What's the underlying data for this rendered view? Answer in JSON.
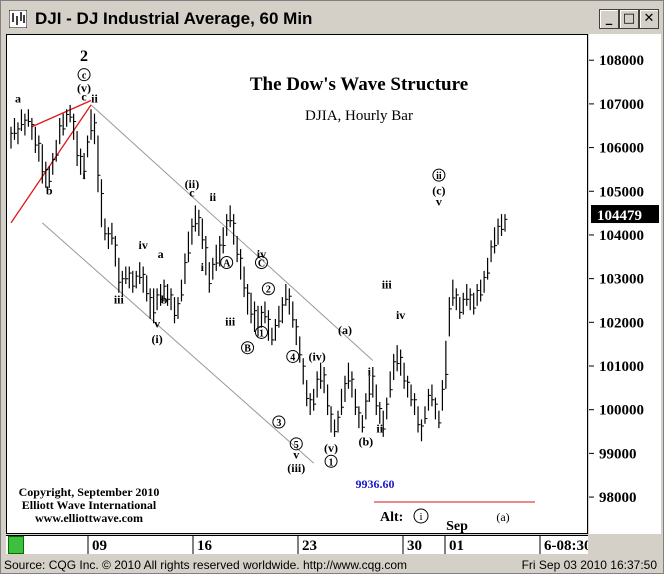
{
  "window": {
    "title": "DJI - DJ Industrial Average, 60 Min",
    "minimize": "_",
    "maximize": "□",
    "close": "✕"
  },
  "status": {
    "left": "Source: CQG Inc. © 2010 All rights reserved worldwide.  http://www.cqg.com",
    "right": "Fri Sep 03 2010 16:37:50"
  },
  "chart_data": {
    "type": "bar",
    "title": "The Dow's Wave Structure",
    "subtitle": "DJIA, Hourly Bar",
    "y_ticks": [
      98000,
      99000,
      100000,
      101000,
      102000,
      103000,
      104000,
      105000,
      106000,
      107000,
      108000
    ],
    "ylim": [
      97200,
      108600
    ],
    "x_ticks": [
      "09",
      "16",
      "23",
      "30",
      "01",
      "6-08:30"
    ],
    "x_month_label": "Sep",
    "last_price": "104479",
    "low_label": "9936.60",
    "copyright": [
      "Copyright, September 2010",
      "Elliott Wave International",
      "www.elliottwave.com"
    ],
    "alt_label": "Alt:",
    "bars": [
      [
        106500,
        106000
      ],
      [
        106700,
        106200
      ],
      [
        106600,
        106100
      ],
      [
        106900,
        106400
      ],
      [
        106800,
        106300
      ],
      [
        106900,
        106500
      ],
      [
        106700,
        106200
      ],
      [
        106500,
        105900
      ],
      [
        106300,
        105700
      ],
      [
        106100,
        105200
      ],
      [
        105700,
        105100
      ],
      [
        105600,
        105100
      ],
      [
        105900,
        105400
      ],
      [
        106200,
        105700
      ],
      [
        106700,
        106100
      ],
      [
        106800,
        106300
      ],
      [
        106900,
        106500
      ],
      [
        107000,
        106600
      ],
      [
        106800,
        106200
      ],
      [
        106400,
        105600
      ],
      [
        106000,
        105400
      ],
      [
        105900,
        105300
      ],
      [
        106300,
        105800
      ],
      [
        106900,
        106200
      ],
      [
        106800,
        106100
      ],
      [
        106300,
        105000
      ],
      [
        105300,
        104200
      ],
      [
        104400,
        103900
      ],
      [
        104200,
        103700
      ],
      [
        104300,
        103800
      ],
      [
        104000,
        103300
      ],
      [
        103500,
        102700
      ],
      [
        103200,
        102600
      ],
      [
        103300,
        102900
      ],
      [
        103300,
        102800
      ],
      [
        103200,
        102700
      ],
      [
        103200,
        102800
      ],
      [
        103400,
        102900
      ],
      [
        103300,
        102700
      ],
      [
        103100,
        102500
      ],
      [
        102800,
        102100
      ],
      [
        102800,
        102000
      ],
      [
        102800,
        102300
      ],
      [
        102900,
        102400
      ],
      [
        103000,
        102500
      ],
      [
        102900,
        102400
      ],
      [
        102800,
        102300
      ],
      [
        102600,
        102000
      ],
      [
        102600,
        102100
      ],
      [
        103000,
        102500
      ],
      [
        103600,
        102900
      ],
      [
        104100,
        103400
      ],
      [
        104400,
        103800
      ],
      [
        104700,
        104100
      ],
      [
        104600,
        104000
      ],
      [
        104400,
        103700
      ],
      [
        104000,
        103100
      ],
      [
        103400,
        102700
      ],
      [
        103500,
        103000
      ],
      [
        103800,
        103200
      ],
      [
        104000,
        103300
      ],
      [
        104200,
        103600
      ],
      [
        104500,
        104000
      ],
      [
        104700,
        104200
      ],
      [
        104500,
        103800
      ],
      [
        104000,
        103400
      ],
      [
        103700,
        103000
      ],
      [
        103300,
        102600
      ],
      [
        102900,
        102200
      ],
      [
        102700,
        102000
      ],
      [
        102500,
        101800
      ],
      [
        102400,
        101700
      ],
      [
        102400,
        101900
      ],
      [
        102500,
        102000
      ],
      [
        102300,
        101600
      ],
      [
        101900,
        101500
      ],
      [
        102100,
        101600
      ],
      [
        102400,
        101900
      ],
      [
        102600,
        102000
      ],
      [
        102900,
        102400
      ],
      [
        102800,
        102200
      ],
      [
        102500,
        101900
      ],
      [
        102100,
        101500
      ],
      [
        101700,
        101100
      ],
      [
        101200,
        100600
      ],
      [
        100700,
        100100
      ],
      [
        100400,
        99900
      ],
      [
        100500,
        100000
      ],
      [
        100900,
        100300
      ],
      [
        101100,
        100500
      ],
      [
        101000,
        100400
      ],
      [
        100600,
        99900
      ],
      [
        100100,
        99500
      ],
      [
        99800,
        99400
      ],
      [
        100000,
        99500
      ],
      [
        100500,
        99900
      ],
      [
        100800,
        100200
      ],
      [
        101100,
        100500
      ],
      [
        100900,
        100300
      ],
      [
        100500,
        99900
      ],
      [
        100100,
        99600
      ],
      [
        99900,
        99500
      ],
      [
        100400,
        99800
      ],
      [
        100800,
        100200
      ],
      [
        101000,
        100300
      ],
      [
        100600,
        99900
      ],
      [
        100200,
        99700
      ],
      [
        100000,
        99400
      ],
      [
        100300,
        99800
      ],
      [
        100900,
        100300
      ],
      [
        101300,
        100700
      ],
      [
        101500,
        100900
      ],
      [
        101400,
        100800
      ],
      [
        101100,
        100500
      ],
      [
        100800,
        100300
      ],
      [
        100600,
        100100
      ],
      [
        100400,
        99900
      ],
      [
        100100,
        99500
      ],
      [
        99800,
        99300
      ],
      [
        100100,
        99700
      ],
      [
        100500,
        100000
      ],
      [
        100600,
        100100
      ],
      [
        100300,
        99800
      ],
      [
        100000,
        99600
      ],
      [
        100700,
        100000
      ],
      [
        101600,
        100500
      ],
      [
        102600,
        101700
      ],
      [
        103000,
        102400
      ],
      [
        102800,
        102300
      ],
      [
        102600,
        102100
      ],
      [
        102700,
        102200
      ],
      [
        102900,
        102400
      ],
      [
        102800,
        102300
      ],
      [
        102700,
        102200
      ],
      [
        102900,
        102400
      ],
      [
        103000,
        102500
      ],
      [
        103200,
        102700
      ],
      [
        103500,
        103000
      ],
      [
        103900,
        103400
      ],
      [
        104200,
        103600
      ],
      [
        104400,
        103800
      ],
      [
        104500,
        104000
      ],
      [
        104500,
        104100
      ]
    ],
    "annotations": [
      {
        "label": "2",
        "price": 108000,
        "bar": 21
      },
      {
        "label": "c",
        "price": 107600,
        "bar": 21,
        "circled": true
      },
      {
        "label": "(v)",
        "price": 107300,
        "bar": 21
      },
      {
        "label": "c",
        "price": 107100,
        "bar": 21
      },
      {
        "label": "a",
        "price": 107050,
        "bar": 2
      },
      {
        "label": "ii",
        "price": 107050,
        "bar": 24
      },
      {
        "label": "b",
        "price": 104950,
        "bar": 11
      },
      {
        "label": "i",
        "price": 105300,
        "bar": 21
      },
      {
        "label": "iii",
        "price": 102450,
        "bar": 31
      },
      {
        "label": "iv",
        "price": 103700,
        "bar": 38
      },
      {
        "label": "a",
        "price": 103500,
        "bar": 43
      },
      {
        "label": "b",
        "price": 102450,
        "bar": 44
      },
      {
        "label": "v",
        "price": 101900,
        "bar": 42
      },
      {
        "label": "(i)",
        "price": 101550,
        "bar": 42
      },
      {
        "label": "(ii)",
        "price": 105100,
        "bar": 52
      },
      {
        "label": "c",
        "price": 104900,
        "bar": 52
      },
      {
        "label": "i",
        "price": 103200,
        "bar": 55
      },
      {
        "label": "ii",
        "price": 104800,
        "bar": 58
      },
      {
        "label": "A",
        "price": 103300,
        "bar": 62,
        "circled": true
      },
      {
        "label": "iii",
        "price": 101950,
        "bar": 63
      },
      {
        "label": "B",
        "price": 101350,
        "bar": 68,
        "circled": true
      },
      {
        "label": "iv",
        "price": 103500,
        "bar": 72
      },
      {
        "label": "C",
        "price": 103300,
        "bar": 72,
        "circled": true
      },
      {
        "label": "2",
        "price": 102700,
        "bar": 74,
        "circled": true
      },
      {
        "label": "1",
        "price": 101700,
        "bar": 72,
        "circled": true
      },
      {
        "label": "3",
        "price": 99650,
        "bar": 77,
        "circled": true
      },
      {
        "label": "4",
        "price": 101150,
        "bar": 81,
        "circled": true
      },
      {
        "label": "(iv)",
        "price": 101150,
        "bar": 88
      },
      {
        "label": "5",
        "price": 99150,
        "bar": 82,
        "circled": true
      },
      {
        "label": "v",
        "price": 98900,
        "bar": 82
      },
      {
        "label": "(iii)",
        "price": 98600,
        "bar": 82
      },
      {
        "label": "(v)",
        "price": 99050,
        "bar": 92
      },
      {
        "label": "1",
        "price": 98750,
        "bar": 92,
        "circled": true
      },
      {
        "label": "(a)",
        "price": 101750,
        "bar": 96
      },
      {
        "label": "i",
        "price": 100800,
        "bar": 103
      },
      {
        "label": "(b)",
        "price": 99200,
        "bar": 102
      },
      {
        "label": "iii",
        "price": 102800,
        "bar": 108
      },
      {
        "label": "iv",
        "price": 102100,
        "bar": 112
      },
      {
        "label": "ii",
        "price": 99500,
        "bar": 106
      },
      {
        "label": "ii",
        "price": 105300,
        "bar": 123,
        "circled": true
      },
      {
        "label": "(c)",
        "price": 104950,
        "bar": 123
      },
      {
        "label": "v",
        "price": 104700,
        "bar": 123
      }
    ]
  }
}
